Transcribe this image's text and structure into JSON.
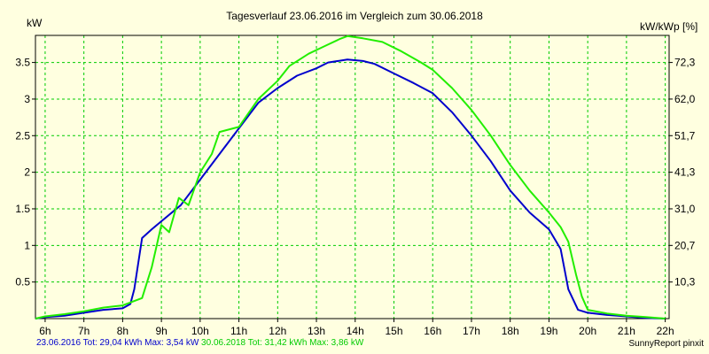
{
  "chart_data": {
    "type": "line",
    "title": "Tagesverlauf 23.06.2016 im Vergleich zum 30.06.2018",
    "ylabel_left": "kW",
    "ylabel_right": "kW/kWp [%]",
    "x_ticks": [
      "6h",
      "7h",
      "8h",
      "9h",
      "10h",
      "11h",
      "12h",
      "13h",
      "14h",
      "15h",
      "16h",
      "17h",
      "18h",
      "19h",
      "20h",
      "21h",
      "22h"
    ],
    "xlim": [
      5.75,
      22.1
    ],
    "y_ticks_left": [
      "0.5",
      "1",
      "1.5",
      "2",
      "2.5",
      "3",
      "3.5"
    ],
    "ylim": [
      0,
      3.87
    ],
    "y_ticks_right": [
      "10,3",
      "20,7",
      "31,0",
      "41,3",
      "51,7",
      "62,0",
      "72,3"
    ],
    "grid": true,
    "series": [
      {
        "name": "23.06.2016",
        "color": "#0000cc",
        "points": [
          [
            5.75,
            0.0
          ],
          [
            6.0,
            0.02
          ],
          [
            6.5,
            0.04
          ],
          [
            7.0,
            0.08
          ],
          [
            7.5,
            0.12
          ],
          [
            8.0,
            0.14
          ],
          [
            8.2,
            0.2
          ],
          [
            8.3,
            0.4
          ],
          [
            8.5,
            1.1
          ],
          [
            8.75,
            1.22
          ],
          [
            9.0,
            1.33
          ],
          [
            9.5,
            1.55
          ],
          [
            10.0,
            1.9
          ],
          [
            10.5,
            2.25
          ],
          [
            11.0,
            2.6
          ],
          [
            11.5,
            2.95
          ],
          [
            12.0,
            3.15
          ],
          [
            12.5,
            3.32
          ],
          [
            13.0,
            3.42
          ],
          [
            13.3,
            3.5
          ],
          [
            13.8,
            3.54
          ],
          [
            14.2,
            3.52
          ],
          [
            14.5,
            3.48
          ],
          [
            15.0,
            3.35
          ],
          [
            15.5,
            3.22
          ],
          [
            16.0,
            3.08
          ],
          [
            16.5,
            2.82
          ],
          [
            17.0,
            2.5
          ],
          [
            17.5,
            2.15
          ],
          [
            18.0,
            1.75
          ],
          [
            18.5,
            1.45
          ],
          [
            19.0,
            1.22
          ],
          [
            19.3,
            0.95
          ],
          [
            19.5,
            0.4
          ],
          [
            19.75,
            0.12
          ],
          [
            20.0,
            0.08
          ],
          [
            20.5,
            0.05
          ],
          [
            21.0,
            0.03
          ],
          [
            21.5,
            0.01
          ],
          [
            22.0,
            0.0
          ]
        ]
      },
      {
        "name": "30.06.2018",
        "color": "#22ee00",
        "points": [
          [
            5.75,
            0.0
          ],
          [
            6.0,
            0.03
          ],
          [
            6.5,
            0.06
          ],
          [
            7.0,
            0.1
          ],
          [
            7.5,
            0.15
          ],
          [
            8.0,
            0.18
          ],
          [
            8.5,
            0.28
          ],
          [
            8.75,
            0.7
          ],
          [
            9.0,
            1.28
          ],
          [
            9.2,
            1.18
          ],
          [
            9.45,
            1.65
          ],
          [
            9.7,
            1.55
          ],
          [
            10.0,
            2.0
          ],
          [
            10.3,
            2.25
          ],
          [
            10.5,
            2.55
          ],
          [
            11.0,
            2.62
          ],
          [
            11.5,
            3.0
          ],
          [
            12.0,
            3.25
          ],
          [
            12.3,
            3.45
          ],
          [
            12.8,
            3.62
          ],
          [
            13.2,
            3.72
          ],
          [
            13.6,
            3.82
          ],
          [
            13.8,
            3.86
          ],
          [
            14.2,
            3.83
          ],
          [
            14.7,
            3.78
          ],
          [
            15.2,
            3.65
          ],
          [
            15.7,
            3.5
          ],
          [
            16.0,
            3.4
          ],
          [
            16.5,
            3.15
          ],
          [
            17.0,
            2.85
          ],
          [
            17.5,
            2.5
          ],
          [
            18.0,
            2.1
          ],
          [
            18.5,
            1.75
          ],
          [
            19.0,
            1.45
          ],
          [
            19.3,
            1.25
          ],
          [
            19.5,
            1.05
          ],
          [
            19.7,
            0.6
          ],
          [
            19.85,
            0.3
          ],
          [
            20.0,
            0.12
          ],
          [
            20.5,
            0.07
          ],
          [
            21.0,
            0.04
          ],
          [
            21.5,
            0.02
          ],
          [
            22.0,
            0.0
          ]
        ]
      }
    ]
  },
  "footer": {
    "left_series1": "23.06.2016 Tot: 29,04 kWh Max: 3,54 kW",
    "left_series2": "30.06.2018 Tot: 31,42 kWh Max: 3,86 kW",
    "right": "SunnyReport pinxit"
  },
  "colors": {
    "background": "#ffffe0",
    "grid": "#00cc00",
    "axes": "#000000"
  }
}
